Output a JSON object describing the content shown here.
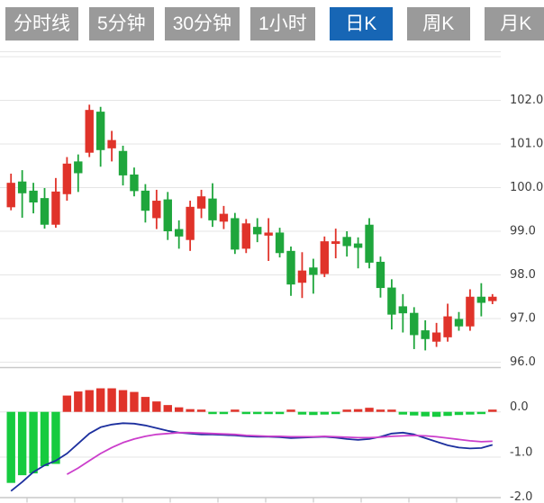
{
  "toolbar": {
    "tabs": [
      {
        "label": "分时线",
        "active": false
      },
      {
        "label": "5分钟",
        "active": false
      },
      {
        "label": "30分钟",
        "active": false
      },
      {
        "label": "1小时",
        "active": false
      },
      {
        "label": "日K",
        "active": true
      },
      {
        "label": "周K",
        "active": false
      },
      {
        "label": "月K",
        "active": false
      }
    ]
  },
  "chart_data": {
    "type": "candlestick",
    "x_count": 44,
    "price_axis_labels": [
      "102.0",
      "101.0",
      "100.0",
      "99.0",
      "98.0",
      "97.0",
      "96.0"
    ],
    "price_axis_ticks": [
      102.0,
      101.0,
      100.0,
      99.0,
      98.0,
      97.0,
      96.0
    ],
    "price_range": [
      96.0,
      103.0
    ],
    "grid": true,
    "candles": [
      [
        99.55,
        100.32,
        99.48,
        100.11
      ],
      [
        100.14,
        100.4,
        99.31,
        99.87
      ],
      [
        99.93,
        100.11,
        99.41,
        99.66
      ],
      [
        99.76,
        99.99,
        99.06,
        99.15
      ],
      [
        99.15,
        100.22,
        99.08,
        99.91
      ],
      [
        99.85,
        100.7,
        99.7,
        100.55
      ],
      [
        100.6,
        100.76,
        99.9,
        100.33
      ],
      [
        100.8,
        101.9,
        100.7,
        101.78
      ],
      [
        101.74,
        101.85,
        100.48,
        100.86
      ],
      [
        100.9,
        101.3,
        100.6,
        101.09
      ],
      [
        100.84,
        100.96,
        100.05,
        100.28
      ],
      [
        100.3,
        100.46,
        99.8,
        99.92
      ],
      [
        99.93,
        100.08,
        99.2,
        99.47
      ],
      [
        99.3,
        99.95,
        99.05,
        99.7
      ],
      [
        99.73,
        99.9,
        98.8,
        99.0
      ],
      [
        99.05,
        99.25,
        98.6,
        98.88
      ],
      [
        98.8,
        99.7,
        98.55,
        99.56
      ],
      [
        99.52,
        99.95,
        99.3,
        99.8
      ],
      [
        99.75,
        100.1,
        99.1,
        99.25
      ],
      [
        99.22,
        99.58,
        99.05,
        99.4
      ],
      [
        99.3,
        99.42,
        98.48,
        98.58
      ],
      [
        98.6,
        99.28,
        98.5,
        99.18
      ],
      [
        99.1,
        99.3,
        98.75,
        98.93
      ],
      [
        98.9,
        99.3,
        98.32,
        98.97
      ],
      [
        98.97,
        99.08,
        98.4,
        98.5
      ],
      [
        98.55,
        98.65,
        97.52,
        97.78
      ],
      [
        97.82,
        98.52,
        97.47,
        98.1
      ],
      [
        98.17,
        98.37,
        97.57,
        98.0
      ],
      [
        98.02,
        98.88,
        97.95,
        98.77
      ],
      [
        98.71,
        99.06,
        98.38,
        98.77
      ],
      [
        98.87,
        99.0,
        98.42,
        98.66
      ],
      [
        98.72,
        98.86,
        98.15,
        98.62
      ],
      [
        99.15,
        99.3,
        98.15,
        98.28
      ],
      [
        98.3,
        98.42,
        97.48,
        97.7
      ],
      [
        97.71,
        97.9,
        96.75,
        97.09
      ],
      [
        97.28,
        97.56,
        96.68,
        97.12
      ],
      [
        97.13,
        97.26,
        96.3,
        96.62
      ],
      [
        96.73,
        96.96,
        96.27,
        96.53
      ],
      [
        96.47,
        96.9,
        96.35,
        96.68
      ],
      [
        96.57,
        97.34,
        96.47,
        97.05
      ],
      [
        96.99,
        97.15,
        96.72,
        96.82
      ],
      [
        96.82,
        97.67,
        96.72,
        97.5
      ],
      [
        97.5,
        97.81,
        97.05,
        97.36
      ],
      [
        97.4,
        97.56,
        97.33,
        97.5
      ]
    ],
    "macd": {
      "axis_labels": [
        "0.0",
        "-1.0",
        "-2.0"
      ],
      "axis_ticks": [
        0.0,
        -1.0,
        -2.0
      ],
      "histogram": [
        -1.57,
        -1.4,
        -1.36,
        -1.2,
        -1.15,
        0.36,
        0.45,
        0.48,
        0.52,
        0.52,
        0.48,
        0.44,
        0.33,
        0.23,
        0.15,
        0.1,
        0.06,
        0.04,
        -0.03,
        -0.03,
        0.03,
        -0.04,
        -0.05,
        -0.05,
        -0.04,
        0.03,
        -0.06,
        -0.07,
        -0.06,
        -0.05,
        0.04,
        0.06,
        0.09,
        0.05,
        0.03,
        -0.06,
        -0.08,
        -0.1,
        -0.11,
        -0.09,
        -0.07,
        -0.06,
        -0.02,
        0.03
      ],
      "dif": [
        -1.75,
        -1.55,
        -1.33,
        -1.18,
        -1.08,
        -0.92,
        -0.7,
        -0.48,
        -0.34,
        -0.28,
        -0.25,
        -0.26,
        -0.3,
        -0.36,
        -0.42,
        -0.46,
        -0.48,
        -0.5,
        -0.5,
        -0.51,
        -0.52,
        -0.54,
        -0.55,
        -0.55,
        -0.56,
        -0.58,
        -0.57,
        -0.56,
        -0.55,
        -0.57,
        -0.6,
        -0.62,
        -0.6,
        -0.55,
        -0.48,
        -0.46,
        -0.5,
        -0.58,
        -0.66,
        -0.74,
        -0.79,
        -0.81,
        -0.8,
        -0.73
      ],
      "dea": [
        null,
        null,
        null,
        null,
        null,
        -1.38,
        -1.24,
        -1.08,
        -0.92,
        -0.79,
        -0.68,
        -0.6,
        -0.54,
        -0.5,
        -0.48,
        -0.46,
        -0.46,
        -0.47,
        -0.48,
        -0.49,
        -0.5,
        -0.52,
        -0.53,
        -0.54,
        -0.54,
        -0.55,
        -0.55,
        -0.55,
        -0.54,
        -0.55,
        -0.56,
        -0.57,
        -0.57,
        -0.56,
        -0.54,
        -0.53,
        -0.52,
        -0.53,
        -0.55,
        -0.58,
        -0.61,
        -0.64,
        -0.66,
        -0.65
      ]
    },
    "colors": {
      "up": "#e0332a",
      "down": "#1fa63c",
      "hist_up": "#e0332a",
      "hist_down": "#16cb3f",
      "dif_line": "#1c2f9e",
      "dea_line": "#cb3ecb",
      "grid": "#e5e5e5",
      "axis_line": "#c9c9c9",
      "tab_active": "#1766b5",
      "tab_inactive": "#9a9a9a"
    }
  }
}
